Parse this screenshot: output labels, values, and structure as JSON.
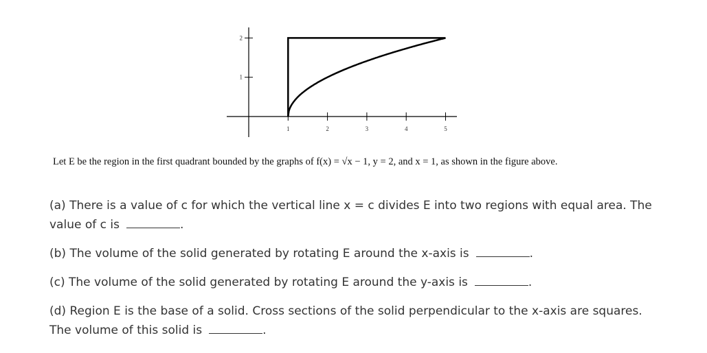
{
  "figure": {
    "xticks": [
      1,
      2,
      3,
      4,
      5
    ],
    "yticks": [
      1,
      2
    ]
  },
  "caption": "Let E be the region in the first quadrant bounded by the graphs of f(x) = √x − 1, y = 2, and x = 1, as shown in the figure above.",
  "questions": [
    {
      "text": "(a) There is a value of c for which the vertical line x = c divides E into two regions with equal area.  The value of c is",
      "end": "."
    },
    {
      "text": "(b) The volume of the solid generated by rotating E around the x-axis is",
      "end": "."
    },
    {
      "text": "(c) The volume of the solid generated by rotating E around the y-axis is",
      "end": "."
    },
    {
      "text": "(d) Region E is the base of a solid.  Cross sections of the solid perpendicular to the x-axis are squares.  The volume of this solid is",
      "end": "."
    }
  ]
}
